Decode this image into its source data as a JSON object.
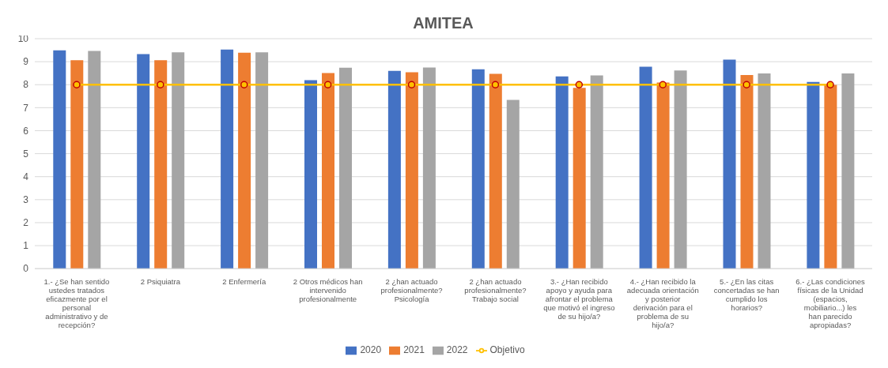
{
  "chart_data": {
    "type": "bar",
    "title": "AMITEA",
    "categories": [
      "1.- ¿Se han sentido ustedes tratados eficazmente por el personal administrativo y de recepción?",
      "2 Psiquiatra",
      "2 Enfermería",
      "2 Otros médicos han intervenido profesionalmente",
      "2 ¿han actuado profesionalmente? Psicología",
      "2 ¿han actuado profesionalmente? Trabajo social",
      "3.- ¿Han recibido apoyo y ayuda para afrontar el problema que motivó el ingreso de su hijo/a?",
      "4.- ¿Han recibido la adecuada orientación y posterior derivación para el problema de su hijo/a?",
      "5.- ¿En las citas concertadas se han cumplido los horarios?",
      "6.- ¿Las condiciones físicas de la Unidad (espacios, mobiliario...) les han parecido apropiadas?"
    ],
    "series": [
      {
        "name": "2020",
        "color": "#4472c4",
        "values": [
          9.49,
          9.33,
          9.53,
          8.2,
          8.6,
          8.67,
          8.36,
          8.78,
          9.09,
          8.12
        ]
      },
      {
        "name": "2021",
        "color": "#ed7d31",
        "values": [
          9.06,
          9.06,
          9.39,
          8.51,
          8.54,
          8.47,
          7.86,
          8.09,
          8.42,
          7.99
        ]
      },
      {
        "name": "2022",
        "color": "#a5a5a5",
        "values": [
          9.47,
          9.41,
          9.41,
          8.74,
          8.75,
          7.34,
          8.4,
          8.62,
          8.49,
          8.49
        ]
      },
      {
        "name": "Objetivo",
        "type": "line",
        "color": "#ffc000",
        "marker": "circle",
        "values": [
          8,
          8,
          8,
          8,
          8,
          8,
          8,
          8,
          8,
          8
        ]
      }
    ],
    "ylim": [
      0,
      10
    ],
    "yticks": [
      0,
      1,
      2,
      3,
      4,
      5,
      6,
      7,
      8,
      9,
      10
    ],
    "grid": "y",
    "legend": "bottom"
  }
}
